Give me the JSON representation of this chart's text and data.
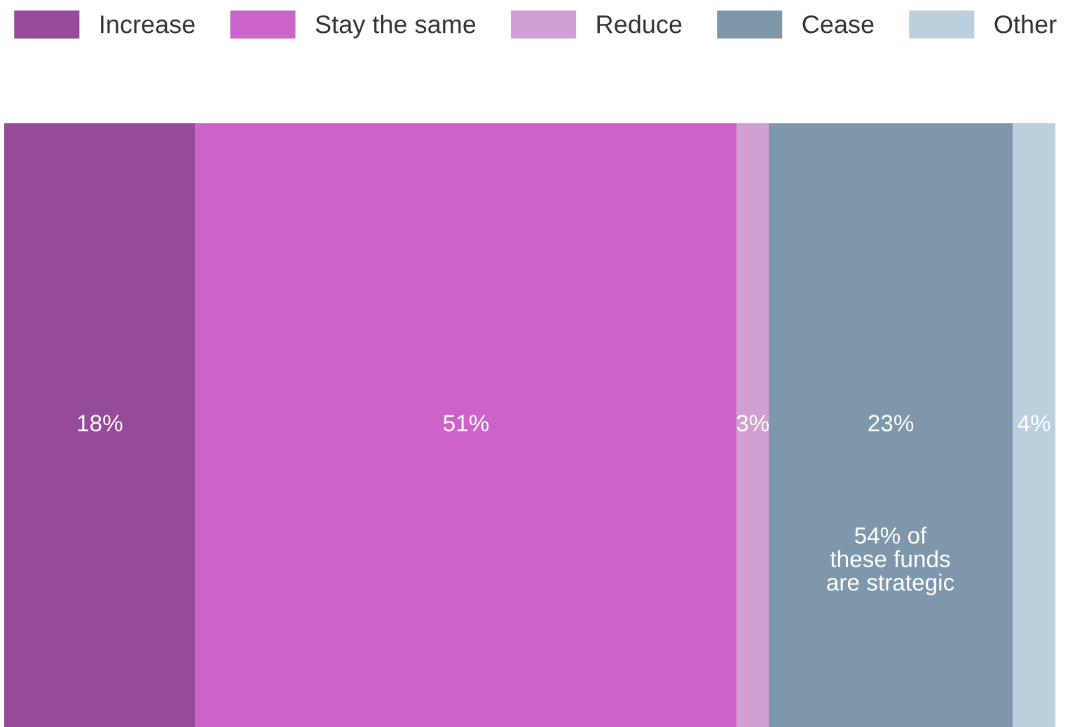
{
  "chart_data": {
    "type": "bar",
    "orientation": "horizontal",
    "stacked": true,
    "categories": [
      null
    ],
    "tick_labels": false,
    "legend": "top",
    "series": [
      {
        "name": "Increase",
        "color": "#954a9a",
        "values": [
          18
        ],
        "value_labels": [
          "18%"
        ]
      },
      {
        "name": "Stay the same",
        "color": "#cb63c9",
        "values": [
          51
        ],
        "value_labels": [
          "51%"
        ]
      },
      {
        "name": "Reduce",
        "color": "#d29fd3",
        "values": [
          3
        ],
        "value_labels": [
          "3%"
        ]
      },
      {
        "name": "Cease",
        "color": "#7f97ab",
        "values": [
          23
        ],
        "value_labels": [
          "23%"
        ]
      },
      {
        "name": "Other",
        "color": "#bccfdd",
        "values": [
          4
        ],
        "value_labels": [
          "4%"
        ]
      }
    ],
    "annotations": [
      "54% of\nthese funds\nare strategic"
    ]
  }
}
